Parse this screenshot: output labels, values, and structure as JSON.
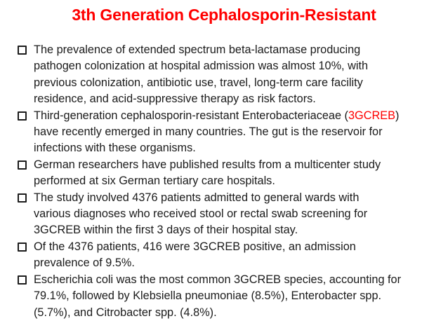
{
  "slide": {
    "title": "3th Generation Cephalosporin-Resistant",
    "colors": {
      "accent": "#ff0000",
      "text": "#1b1b1b",
      "background": "#ffffff"
    },
    "bullet_icon": "hollow-square",
    "bullets": [
      {
        "lines": [
          [
            {
              "text": "The prevalence of extended spectrum beta-lactamase producing"
            }
          ],
          [
            {
              "text": "pathogen colonization at hospital admission was almost 10%, with"
            }
          ],
          [
            {
              "text": "previous colonization, antibiotic use, travel, long-term care facility"
            }
          ],
          [
            {
              "text": "residence, and acid-suppressive therapy as risk factors."
            }
          ]
        ]
      },
      {
        "lines": [
          [
            {
              "text": "Third-generation cephalosporin-resistant Enterobacteriaceae ("
            },
            {
              "text": "3GCREB",
              "accent": true
            },
            {
              "text": ")"
            }
          ],
          [
            {
              "text": "have recently emerged in many countries. The gut is the reservoir for"
            }
          ],
          [
            {
              "text": "infections with these organisms."
            }
          ]
        ]
      },
      {
        "lines": [
          [
            {
              "text": "German researchers have published results from a multicenter study"
            }
          ],
          [
            {
              "text": "performed at six German tertiary care hospitals."
            }
          ]
        ]
      },
      {
        "lines": [
          [
            {
              "text": "The study involved 4376 patients admitted to general wards with"
            }
          ],
          [
            {
              "text": "various diagnoses who received stool or rectal swab screening for"
            }
          ],
          [
            {
              "text": "3GCREB within the first 3 days of their hospital stay."
            }
          ]
        ]
      },
      {
        "lines": [
          [
            {
              "text": "Of the 4376 patients, 416 were 3GCREB positive, an admission"
            }
          ],
          [
            {
              "text": "prevalence of 9.5%."
            }
          ]
        ]
      },
      {
        "lines": [
          [
            {
              "text": "Escherichia coli was the most common 3GCREB species, accounting for"
            }
          ],
          [
            {
              "text": "79.1%, followed by Klebsiella pneumoniae (8.5%), Enterobacter spp."
            }
          ],
          [
            {
              "text": "(5.7%), and Citrobacter spp. (4.8%)."
            }
          ]
        ]
      }
    ]
  }
}
